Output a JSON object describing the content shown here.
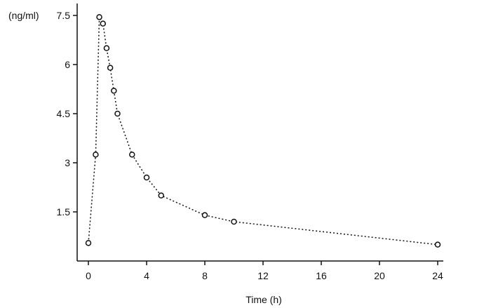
{
  "chart_data": {
    "type": "line",
    "title": "",
    "xlabel": "Time (h)",
    "ylabel": "(ng/ml)",
    "xlim": [
      0,
      24
    ],
    "ylim": [
      0,
      7.5
    ],
    "xticks": [
      0,
      4,
      8,
      12,
      16,
      20,
      24
    ],
    "yticks": [
      1.5,
      3,
      4.5,
      6,
      7.5
    ],
    "xtick_labels": [
      "0",
      "4",
      "8",
      "12",
      "16",
      "20",
      "24"
    ],
    "ytick_labels": [
      "1.5",
      "3",
      "4.5",
      "6",
      "7.5"
    ],
    "grid": false,
    "line_style": "dotted",
    "marker": "open-circle",
    "color": "#111111",
    "series": [
      {
        "x": [
          0,
          0.5,
          0.75,
          1,
          1.25,
          1.5,
          1.75,
          2,
          3,
          4,
          5,
          8,
          10,
          24
        ],
        "y": [
          0.55,
          3.25,
          7.45,
          7.25,
          6.5,
          5.9,
          5.2,
          4.5,
          3.25,
          2.55,
          2.0,
          1.4,
          1.2,
          0.5
        ]
      }
    ]
  }
}
